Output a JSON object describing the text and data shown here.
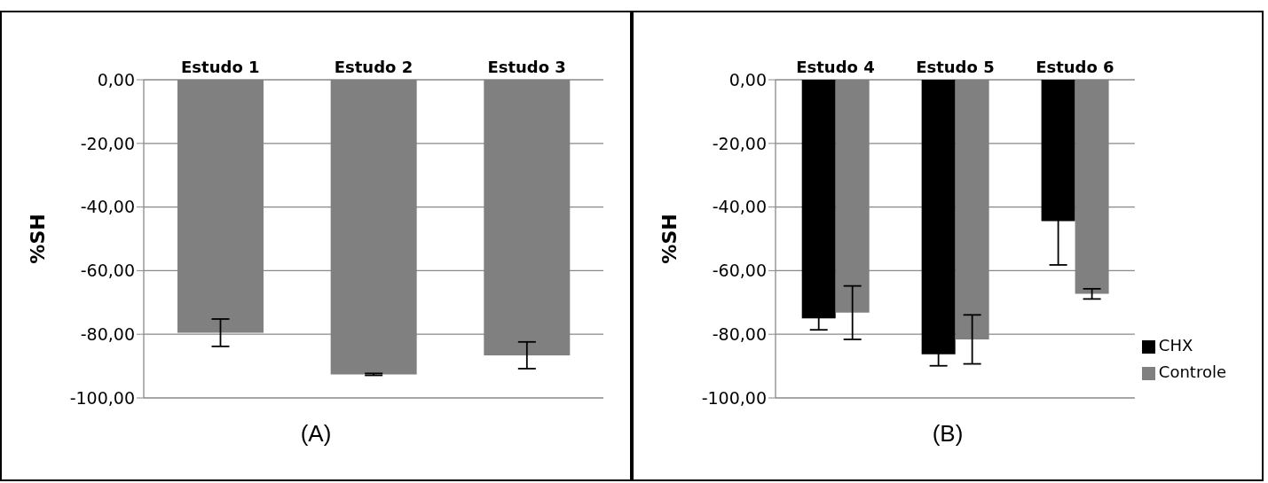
{
  "chart_data": [
    {
      "type": "bar",
      "categories": [
        "Estudo 1",
        "Estudo 2",
        "Estudo 3"
      ],
      "ylabel": "%SH",
      "ylim": [
        -100,
        0
      ],
      "yticks": [
        {
          "value": -100,
          "label": "-100,00"
        },
        {
          "value": -80,
          "label": "-80,00"
        },
        {
          "value": -60,
          "label": "-60,00"
        },
        {
          "value": -40,
          "label": "-40,00"
        },
        {
          "value": -20,
          "label": "-20,00"
        },
        {
          "value": 0,
          "label": "0,00"
        }
      ],
      "grid": "y",
      "legend": false,
      "series": [
        {
          "color": "#808080",
          "values": [
            -79.5,
            -92.6,
            -86.6
          ],
          "errors": [
            4.3,
            0.3,
            4.2
          ]
        }
      ],
      "annotations": [
        "(A)"
      ]
    },
    {
      "type": "bar",
      "categories": [
        "Estudo 4",
        "Estudo 5",
        "Estudo 6"
      ],
      "ylabel": "%SH",
      "ylim": [
        -100,
        0
      ],
      "yticks": [
        {
          "value": -100,
          "label": "-100,00"
        },
        {
          "value": -80,
          "label": "-80,00"
        },
        {
          "value": -60,
          "label": "-60,00"
        },
        {
          "value": -40,
          "label": "-40,00"
        },
        {
          "value": -20,
          "label": "-20,00"
        },
        {
          "value": 0,
          "label": "0,00"
        }
      ],
      "grid": "y",
      "legend": "bottom right",
      "series": [
        {
          "name": "CHX",
          "color": "#000000",
          "values": [
            -75,
            -86.3,
            -44.4
          ],
          "errors": [
            3.6,
            3.6,
            13.8
          ]
        },
        {
          "name": "Controle",
          "color": "#808080",
          "values": [
            -73.2,
            -81.6,
            -67.3
          ],
          "errors": [
            8.4,
            7.7,
            1.6
          ]
        }
      ],
      "annotations": [
        "(B)"
      ]
    }
  ]
}
